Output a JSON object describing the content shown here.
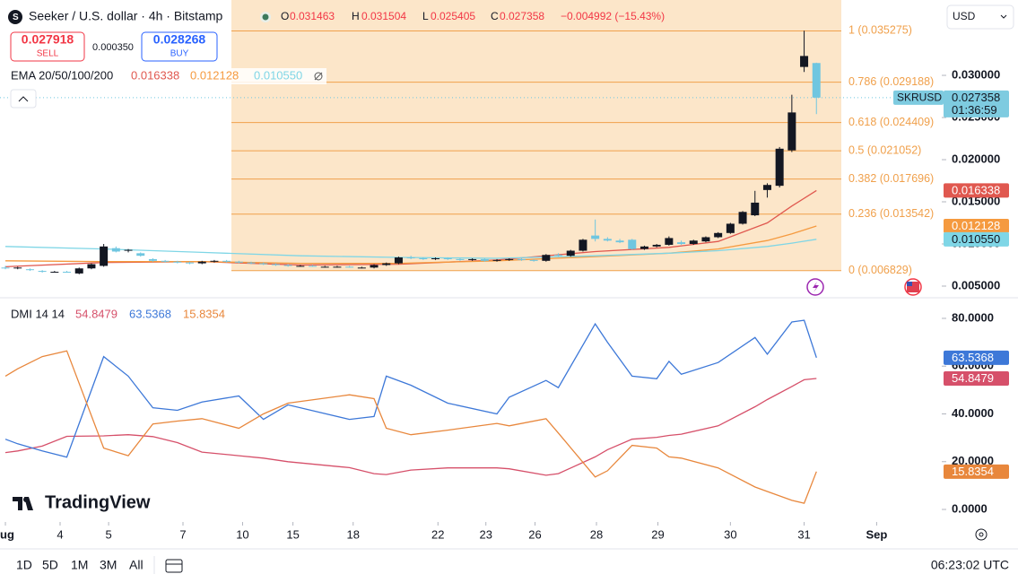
{
  "header": {
    "title": "Seeker / U.S. dollar · 4h · Bitstamp",
    "ohlc_letters": [
      "O",
      "H",
      "L",
      "C"
    ],
    "change": "−0.004992 (−15.43%)",
    "currency": "USD"
  },
  "trade": {
    "sell_price": 0.027918,
    "sell_label": "SELL",
    "spread": "0.000350",
    "buy_price": 0.028268,
    "buy_label": "BUY"
  },
  "ema_legend": "EMA 20/50/100/200",
  "dmi_legend": "DMI 14 14",
  "price_tag": {
    "symbol": "SKRUSD",
    "countdown": "01:36:59"
  },
  "brand": "TradingView",
  "toolbar": [
    "1D",
    "5D",
    "1M",
    "3M",
    "All"
  ],
  "clock": "06:23:02 UTC",
  "chart_data": [
    {
      "type": "candlestick",
      "up_color": "#131722",
      "down_color": "#6fc6e0",
      "xlim": [
        -0.44,
        76.2
      ],
      "xticks": [
        {
          "value": 0,
          "label": "ug"
        },
        {
          "value": 4.45,
          "label": "4"
        },
        {
          "value": 8.4,
          "label": "5"
        },
        {
          "value": 14.45,
          "label": "7"
        },
        {
          "value": 19.3,
          "label": "10"
        },
        {
          "value": 23.4,
          "label": "15"
        },
        {
          "value": 28.3,
          "label": "18"
        },
        {
          "value": 35.2,
          "label": "22"
        },
        {
          "value": 39.1,
          "label": "23"
        },
        {
          "value": 43.1,
          "label": "26"
        },
        {
          "value": 48.1,
          "label": "28"
        },
        {
          "value": 53.1,
          "label": "29"
        },
        {
          "value": 59,
          "label": "30"
        },
        {
          "value": 65,
          "label": "31"
        },
        {
          "value": 70.9,
          "label": "Sep"
        }
      ],
      "ylim": [
        0.00383,
        0.03894
      ],
      "yticks": [
        {
          "value": 0.03,
          "label": "0.030000"
        },
        {
          "value": 0.025,
          "label": "0.025000"
        },
        {
          "value": 0.02,
          "label": "0.020000"
        },
        {
          "value": 0.015,
          "label": "0.015000"
        },
        {
          "value": 0.01,
          "label": "0.010000"
        },
        {
          "value": 0.005,
          "label": "0.005000"
        }
      ],
      "ohlc": [
        [
          0.0072,
          0.0074,
          0.007,
          0.0071
        ],
        [
          0.0071,
          0.0073,
          0.007,
          0.0072
        ],
        [
          0.007,
          0.0071,
          0.0068,
          0.0069
        ],
        [
          0.0068,
          0.0069,
          0.0066,
          0.0067
        ],
        [
          0.0067,
          0.0068,
          0.0066,
          0.0067
        ],
        [
          0.0067,
          0.0068,
          0.0066,
          0.0066
        ],
        [
          0.0065,
          0.0072,
          0.0064,
          0.0071
        ],
        [
          0.0071,
          0.0077,
          0.007,
          0.0076
        ],
        [
          0.0074,
          0.01,
          0.0073,
          0.0097
        ],
        [
          0.0095,
          0.0097,
          0.009,
          0.0091
        ],
        [
          0.0092,
          0.0094,
          0.009,
          0.0093
        ],
        [
          0.0089,
          0.009,
          0.0085,
          0.0086
        ],
        [
          0.0082,
          0.0083,
          0.0079,
          0.008
        ],
        [
          0.008,
          0.0081,
          0.0078,
          0.0079
        ],
        [
          0.0079,
          0.008,
          0.0077,
          0.0078
        ],
        [
          0.0078,
          0.0079,
          0.0076,
          0.0077
        ],
        [
          0.0077,
          0.008,
          0.0076,
          0.0079
        ],
        [
          0.0079,
          0.0081,
          0.0078,
          0.008
        ],
        [
          0.008,
          0.0081,
          0.0078,
          0.0079
        ],
        [
          0.0079,
          0.008,
          0.0077,
          0.0078
        ],
        [
          0.0078,
          0.0079,
          0.0076,
          0.0077
        ],
        [
          0.0077,
          0.0078,
          0.0075,
          0.0076
        ],
        [
          0.0076,
          0.0077,
          0.0074,
          0.0075
        ],
        [
          0.0075,
          0.0076,
          0.0073,
          0.0074
        ],
        [
          0.0074,
          0.0075,
          0.0073,
          0.0074
        ],
        [
          0.0074,
          0.0075,
          0.0073,
          0.0073
        ],
        [
          0.0073,
          0.0074,
          0.0072,
          0.0073
        ],
        [
          0.0073,
          0.0074,
          0.0072,
          0.0073
        ],
        [
          0.0073,
          0.0074,
          0.0072,
          0.0072
        ],
        [
          0.0072,
          0.0073,
          0.0071,
          0.0072
        ],
        [
          0.0072,
          0.0076,
          0.0071,
          0.0075
        ],
        [
          0.0075,
          0.0078,
          0.0074,
          0.0077
        ],
        [
          0.0077,
          0.0085,
          0.0076,
          0.0084
        ],
        [
          0.0084,
          0.0086,
          0.0082,
          0.0083
        ],
        [
          0.0083,
          0.0084,
          0.0081,
          0.0082
        ],
        [
          0.0082,
          0.0084,
          0.0081,
          0.0083
        ],
        [
          0.0083,
          0.0084,
          0.0081,
          0.0082
        ],
        [
          0.0082,
          0.0083,
          0.008,
          0.0081
        ],
        [
          0.0081,
          0.0083,
          0.008,
          0.0082
        ],
        [
          0.0082,
          0.0083,
          0.0079,
          0.008
        ],
        [
          0.008,
          0.0082,
          0.0079,
          0.0081
        ],
        [
          0.0081,
          0.0083,
          0.008,
          0.0082
        ],
        [
          0.0082,
          0.0083,
          0.008,
          0.0081
        ],
        [
          0.0081,
          0.0082,
          0.0079,
          0.008
        ],
        [
          0.008,
          0.0088,
          0.0079,
          0.0087
        ],
        [
          0.0087,
          0.0089,
          0.0085,
          0.0086
        ],
        [
          0.0086,
          0.0093,
          0.0085,
          0.0092
        ],
        [
          0.0092,
          0.0106,
          0.0091,
          0.0105
        ],
        [
          0.011,
          0.0129,
          0.0103,
          0.0106
        ],
        [
          0.0106,
          0.0108,
          0.0103,
          0.0104
        ],
        [
          0.0104,
          0.0106,
          0.0101,
          0.0102
        ],
        [
          0.0105,
          0.0106,
          0.0093,
          0.0094
        ],
        [
          0.0094,
          0.0098,
          0.0093,
          0.0097
        ],
        [
          0.0097,
          0.01,
          0.0096,
          0.0099
        ],
        [
          0.0099,
          0.0109,
          0.0098,
          0.0107
        ],
        [
          0.0102,
          0.0104,
          0.0099,
          0.01
        ],
        [
          0.01,
          0.0105,
          0.0099,
          0.0104
        ],
        [
          0.0103,
          0.0109,
          0.0102,
          0.0108
        ],
        [
          0.0108,
          0.0114,
          0.0107,
          0.0113
        ],
        [
          0.0113,
          0.0125,
          0.0112,
          0.0124
        ],
        [
          0.0124,
          0.0139,
          0.0123,
          0.0138
        ],
        [
          0.0134,
          0.0163,
          0.0133,
          0.0149
        ],
        [
          0.0164,
          0.0172,
          0.0155,
          0.017
        ],
        [
          0.0169,
          0.0215,
          0.0167,
          0.0213
        ],
        [
          0.0211,
          0.0277,
          0.0209,
          0.0256
        ],
        [
          0.031,
          0.0353,
          0.0304,
          0.0323
        ],
        [
          0.031463,
          0.031504,
          0.025405,
          0.027358
        ]
      ],
      "fib": {
        "color": "#f0a04b",
        "levels": [
          {
            "price": 0.035275,
            "label": "1 (0.035275)"
          },
          {
            "price": 0.029188,
            "label": "0.786 (0.029188)"
          },
          {
            "price": 0.024409,
            "label": "0.618 (0.024409)"
          },
          {
            "price": 0.021052,
            "label": "0.5 (0.021052)"
          },
          {
            "price": 0.017696,
            "label": "0.382 (0.017696)"
          },
          {
            "price": 0.013542,
            "label": "0.236 (0.013542)"
          },
          {
            "price": 0.006829,
            "label": "0 (0.006829)"
          }
        ]
      },
      "series": [
        {
          "color": "#e0584f",
          "x": [
            0,
            8,
            16,
            24,
            32,
            40,
            48,
            54,
            58,
            62,
            64,
            66
          ],
          "values": [
            0.0073,
            0.0078,
            0.0079,
            0.0075,
            0.0076,
            0.0081,
            0.0091,
            0.0096,
            0.0103,
            0.0125,
            0.0145,
            0.016338
          ]
        },
        {
          "color": "#f59a3f",
          "x": [
            0,
            8,
            16,
            24,
            32,
            40,
            48,
            54,
            58,
            62,
            64,
            66
          ],
          "values": [
            0.008,
            0.0079,
            0.0079,
            0.0077,
            0.0077,
            0.008,
            0.0085,
            0.0089,
            0.0094,
            0.0104,
            0.0112,
            0.012128
          ]
        },
        {
          "color": "#7fd6e6",
          "x": [
            0,
            8,
            16,
            24,
            32,
            40,
            48,
            54,
            58,
            62,
            64,
            66
          ],
          "values": [
            0.0097,
            0.0094,
            0.009,
            0.0086,
            0.0084,
            0.0083,
            0.0086,
            0.0089,
            0.0092,
            0.0097,
            0.0101,
            0.01055
          ],
          "value_labels": [
            null,
            null,
            null,
            null,
            null,
            null,
            null,
            null,
            null,
            null,
            null,
            "0.010550"
          ]
        }
      ]
    },
    {
      "type": "line",
      "xlim": [
        -0.44,
        76.2
      ],
      "ylim": [
        -4.5,
        87.5
      ],
      "yticks": [
        {
          "value": 80,
          "label": "80.0000"
        },
        {
          "value": 60,
          "label": "60.0000"
        },
        {
          "value": 40,
          "label": "40.0000"
        },
        {
          "value": 20,
          "label": "20.0000"
        },
        {
          "value": 0,
          "label": "0.0000"
        }
      ],
      "x": [
        0,
        1,
        3,
        5,
        8,
        10,
        12,
        14,
        16,
        19,
        21,
        23,
        28,
        30,
        31,
        33,
        36,
        40,
        41,
        44,
        45,
        48,
        49,
        51,
        53,
        54,
        55,
        58,
        61,
        62,
        64,
        65,
        66
      ],
      "series": [
        {
          "color": "#d6506a",
          "values": [
            23.8,
            24.5,
            26.5,
            30.6,
            30.8,
            31.3,
            30.5,
            28,
            24,
            22.5,
            21.5,
            20,
            17.5,
            15,
            14.6,
            16.5,
            17.4,
            17.4,
            17,
            14.3,
            15,
            22,
            25,
            29.4,
            30.2,
            31,
            31.5,
            35,
            43,
            46,
            51.5,
            54.3,
            54.8479
          ]
        },
        {
          "color": "#3d78d8",
          "values": [
            29.4,
            27.5,
            24.5,
            21.9,
            64,
            55.8,
            42.6,
            41.5,
            45,
            47.5,
            37.7,
            43.8,
            37.7,
            38.9,
            55.8,
            52,
            44.5,
            40,
            47,
            54,
            51,
            77.7,
            70,
            55.8,
            54.7,
            62,
            56.6,
            61.5,
            72,
            65,
            78.5,
            79.2,
            63.5368
          ]
        },
        {
          "color": "#e8873c",
          "values": [
            55.8,
            58.9,
            64,
            66.4,
            25.7,
            22.5,
            35.8,
            37,
            38,
            34,
            40,
            44.5,
            48,
            46.4,
            34,
            31.3,
            33.2,
            36,
            35,
            38,
            32,
            13.6,
            16.2,
            26.8,
            25.7,
            22,
            21.5,
            17.4,
            9.4,
            7.5,
            3.8,
            2.6,
            15.8354
          ]
        }
      ]
    }
  ]
}
